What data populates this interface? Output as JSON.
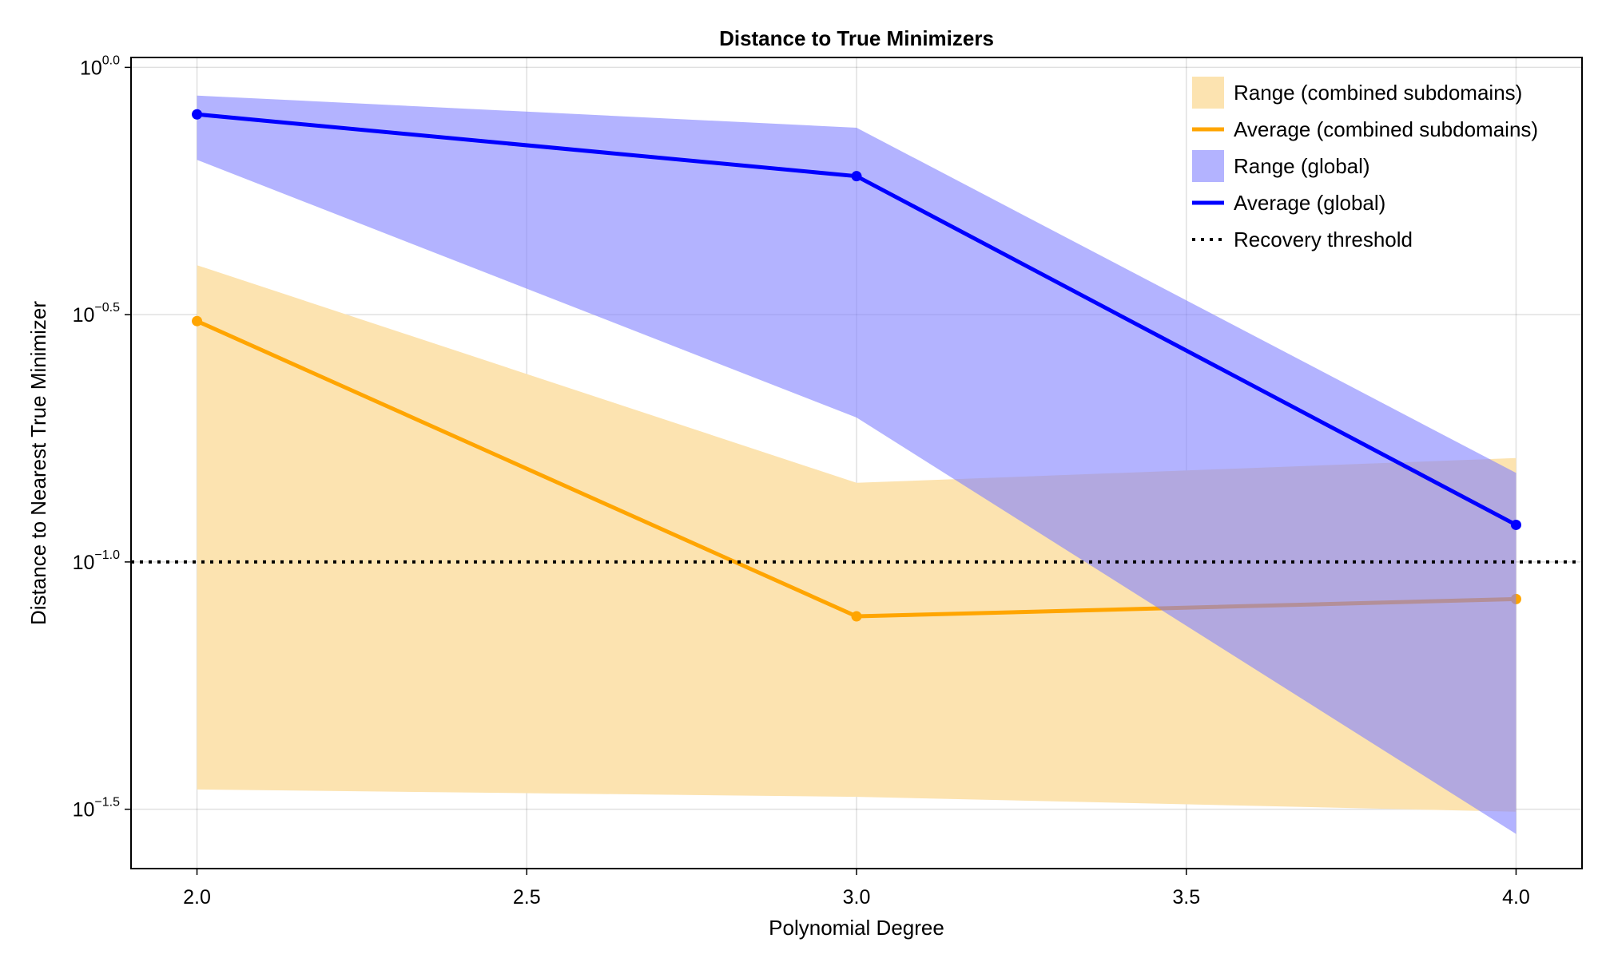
{
  "chart_data": {
    "type": "line",
    "title": "Distance to True Minimizers",
    "xlabel": "Polynomial Degree",
    "ylabel": "Distance to Nearest True Minimizer",
    "x_ticks": [
      "2.0",
      "2.5",
      "3.0",
      "3.5",
      "4.0"
    ],
    "y_ticks": [
      {
        "base": "10",
        "exp": "0.0",
        "value": 0.0
      },
      {
        "base": "10",
        "exp": "−0.5",
        "value": -0.5
      },
      {
        "base": "10",
        "exp": "−1.0",
        "value": -1.0
      },
      {
        "base": "10",
        "exp": "−1.5",
        "value": -1.5
      }
    ],
    "y_scale": "log10",
    "y_range_log10": [
      -1.62,
      0.02
    ],
    "x_range": [
      1.9,
      4.1
    ],
    "grid": true,
    "legend_position": "top-right",
    "x": [
      2.0,
      3.0,
      4.0
    ],
    "series": [
      {
        "name": "Range (combined subdomains)",
        "kind": "band",
        "color": "#fce3b0",
        "lower_log10": [
          -1.46,
          -1.475,
          -1.505
        ],
        "upper_log10": [
          -0.4,
          -0.84,
          -0.79
        ]
      },
      {
        "name": "Average (combined subdomains)",
        "kind": "line",
        "color": "#ffa500",
        "values_log10": [
          -0.513,
          -1.11,
          -1.075
        ]
      },
      {
        "name": "Range (global)",
        "kind": "band",
        "color": "#8080ff",
        "opacity": 0.6,
        "lower_log10": [
          -0.187,
          -0.708,
          -1.55
        ],
        "upper_log10": [
          -0.057,
          -0.122,
          -0.82
        ]
      },
      {
        "name": "Average (global)",
        "kind": "line",
        "color": "#0000ff",
        "values_log10": [
          -0.095,
          -0.22,
          -0.925
        ]
      },
      {
        "name": "Recovery threshold",
        "kind": "hline",
        "color": "#000000",
        "value_log10": -1.0
      }
    ]
  }
}
